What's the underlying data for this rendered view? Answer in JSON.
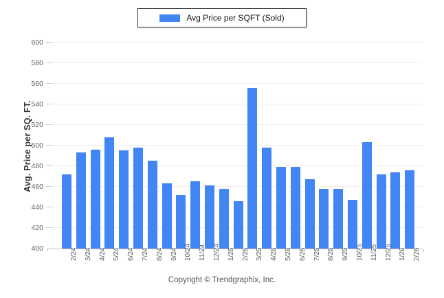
{
  "legend": {
    "label": "Avg Price per SQFT (Sold)",
    "swatch_color": "#4285f4"
  },
  "chart_data": {
    "type": "bar",
    "title": "",
    "series_name": "Avg Price per SQFT (Sold)",
    "categories": [
      "2/24",
      "3/24",
      "4/24",
      "5/24",
      "6/24",
      "7/24",
      "8/24",
      "9/24",
      "10/24",
      "11/24",
      "12/24",
      "1/25",
      "2/25",
      "3/25",
      "4/25",
      "5/25",
      "6/25",
      "7/25",
      "8/25",
      "9/25",
      "10/25",
      "11/25",
      "12/25",
      "1/26",
      "2/26"
    ],
    "values": [
      472,
      493,
      496,
      508,
      495,
      498,
      485,
      463,
      452,
      465,
      461,
      458,
      446,
      556,
      498,
      479,
      479,
      467,
      458,
      458,
      447,
      503,
      472,
      474,
      476
    ],
    "xlabel": "",
    "ylabel": "Avg. Price per SQ. FT.",
    "ylim": [
      400,
      600
    ],
    "yticks": [
      400,
      420,
      440,
      460,
      480,
      500,
      520,
      540,
      560,
      580,
      600
    ],
    "grid": true,
    "legend_position": "top-center",
    "bar_color": "#4285f4",
    "gridline_color": "#ededed"
  },
  "footer": {
    "copyright": "Copyright © Trendgraphix, Inc."
  }
}
